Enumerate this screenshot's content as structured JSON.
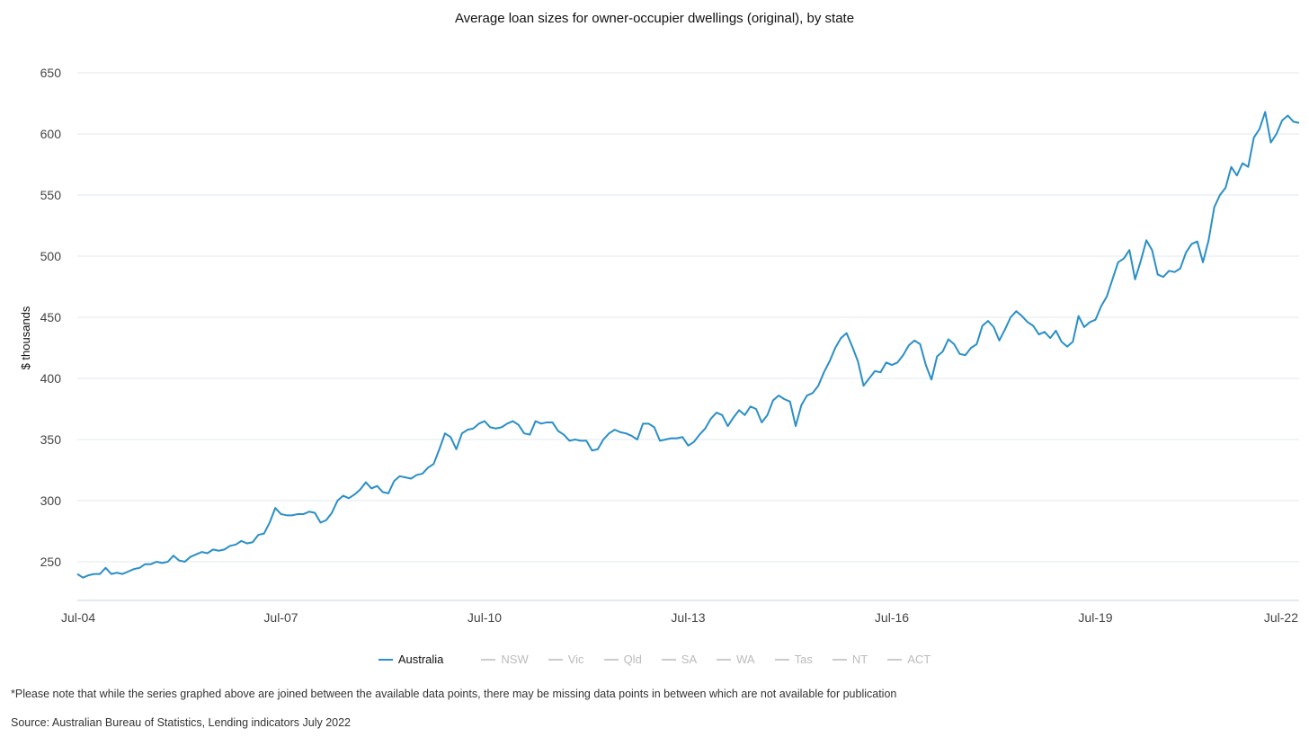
{
  "chart_data": {
    "type": "line",
    "title": "Average loan sizes for owner-occupier dwellings (original), by state",
    "xlabel": "",
    "ylabel": "$ thousands",
    "ylim": [
      215,
      665
    ],
    "yticks": [
      250,
      300,
      350,
      400,
      450,
      500,
      550,
      600,
      650
    ],
    "xticks": [
      "Jul-04",
      "Jul-07",
      "Jul-10",
      "Jul-13",
      "Jul-16",
      "Jul-19",
      "Jul-22"
    ],
    "x_start": "Jul-04",
    "x_end": "Jul-22",
    "frequency": "monthly",
    "grid": true,
    "legend_position": "bottom",
    "series": [
      {
        "name": "Australia",
        "color": "#2a8fc7",
        "values": [
          240,
          237,
          239,
          240,
          240,
          245,
          240,
          241,
          240,
          242,
          244,
          245,
          248,
          248,
          250,
          249,
          250,
          255,
          251,
          250,
          254,
          256,
          258,
          257,
          260,
          259,
          260,
          263,
          264,
          267,
          265,
          266,
          272,
          273,
          282,
          294,
          289,
          288,
          288,
          289,
          289,
          291,
          290,
          282,
          284,
          290,
          300,
          304,
          302,
          305,
          309,
          315,
          310,
          312,
          307,
          306,
          316,
          320,
          319,
          318,
          321,
          322,
          327,
          330,
          342,
          355,
          352,
          342,
          355,
          358,
          359,
          363,
          365,
          360,
          359,
          360,
          363,
          365,
          362,
          355,
          354,
          365,
          363,
          364,
          364,
          357,
          354,
          349,
          350,
          349,
          349,
          341,
          342,
          350,
          355,
          358,
          356,
          355,
          353,
          350,
          363,
          363,
          360,
          349,
          350,
          351,
          351,
          352,
          345,
          348,
          354,
          359,
          367,
          372,
          370,
          361,
          368,
          374,
          370,
          377,
          375,
          364,
          370,
          382,
          386,
          383,
          381,
          361,
          378,
          386,
          388,
          394,
          405,
          414,
          425,
          433,
          437,
          426,
          414,
          394,
          400,
          406,
          405,
          413,
          411,
          413,
          419,
          427,
          431,
          428,
          411,
          399,
          418,
          422,
          432,
          428,
          420,
          419,
          425,
          428,
          443,
          447,
          442,
          431,
          440,
          450,
          455,
          451,
          446,
          443,
          436,
          438,
          433,
          439,
          430,
          426,
          430,
          451,
          442,
          446,
          448,
          459,
          467,
          481,
          495,
          498,
          505,
          481,
          496,
          513,
          505,
          485,
          483,
          488,
          487,
          490,
          503,
          510,
          512,
          495,
          513,
          540,
          550,
          556,
          573,
          566,
          576,
          573,
          597,
          604,
          618,
          593,
          600,
          611,
          615,
          610,
          609
        ]
      }
    ],
    "legend": [
      {
        "name": "Australia",
        "color": "#2a8fc7",
        "active": true
      },
      {
        "name": "NSW",
        "color": "#cccccc",
        "active": false
      },
      {
        "name": "Vic",
        "color": "#cccccc",
        "active": false
      },
      {
        "name": "Qld",
        "color": "#cccccc",
        "active": false
      },
      {
        "name": "SA",
        "color": "#cccccc",
        "active": false
      },
      {
        "name": "WA",
        "color": "#cccccc",
        "active": false
      },
      {
        "name": "Tas",
        "color": "#cccccc",
        "active": false
      },
      {
        "name": "NT",
        "color": "#cccccc",
        "active": false
      },
      {
        "name": "ACT",
        "color": "#cccccc",
        "active": false
      }
    ]
  },
  "footnote": "*Please note that while the series graphed above are joined between the available data points, there may be missing data points in between which are not available for publication",
  "source": "Source: Australian Bureau of Statistics, Lending indicators July 2022"
}
